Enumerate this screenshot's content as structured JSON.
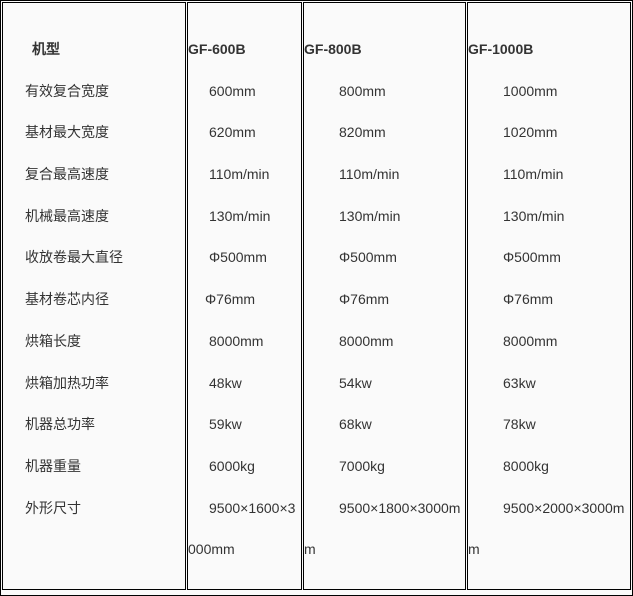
{
  "labels": {
    "header": "机型",
    "rows": [
      "有效复合宽度",
      "基材最大宽度",
      "复合最高速度",
      "机械最高速度",
      "收放卷最大直径",
      "基材卷芯内径",
      "烘箱长度",
      "烘箱加热功率",
      "机器总功率",
      "机器重量",
      "外形尺寸"
    ]
  },
  "models": [
    {
      "name": "GF-600B",
      "values": [
        "600mm",
        "620mm",
        "110m/min",
        "130m/min",
        "Φ500mm",
        "Φ76mm",
        "8000mm",
        "48kw",
        "59kw",
        "6000kg",
        "9500×1600×3000mm"
      ]
    },
    {
      "name": "GF-800B",
      "values": [
        "800mm",
        "820mm",
        "110m/min",
        "130m/min",
        "Φ500mm",
        "Φ76mm",
        "8000mm",
        "54kw",
        "68kw",
        "7000kg",
        "9500×1800×3000mm"
      ]
    },
    {
      "name": "GF-1000B",
      "values": [
        "1000mm",
        "1020mm",
        "110m/min",
        "130m/min",
        "Φ500mm",
        "Φ76mm",
        "8000mm",
        "63kw",
        "78kw",
        "8000kg",
        "9500×2000×3000mm"
      ]
    }
  ]
}
